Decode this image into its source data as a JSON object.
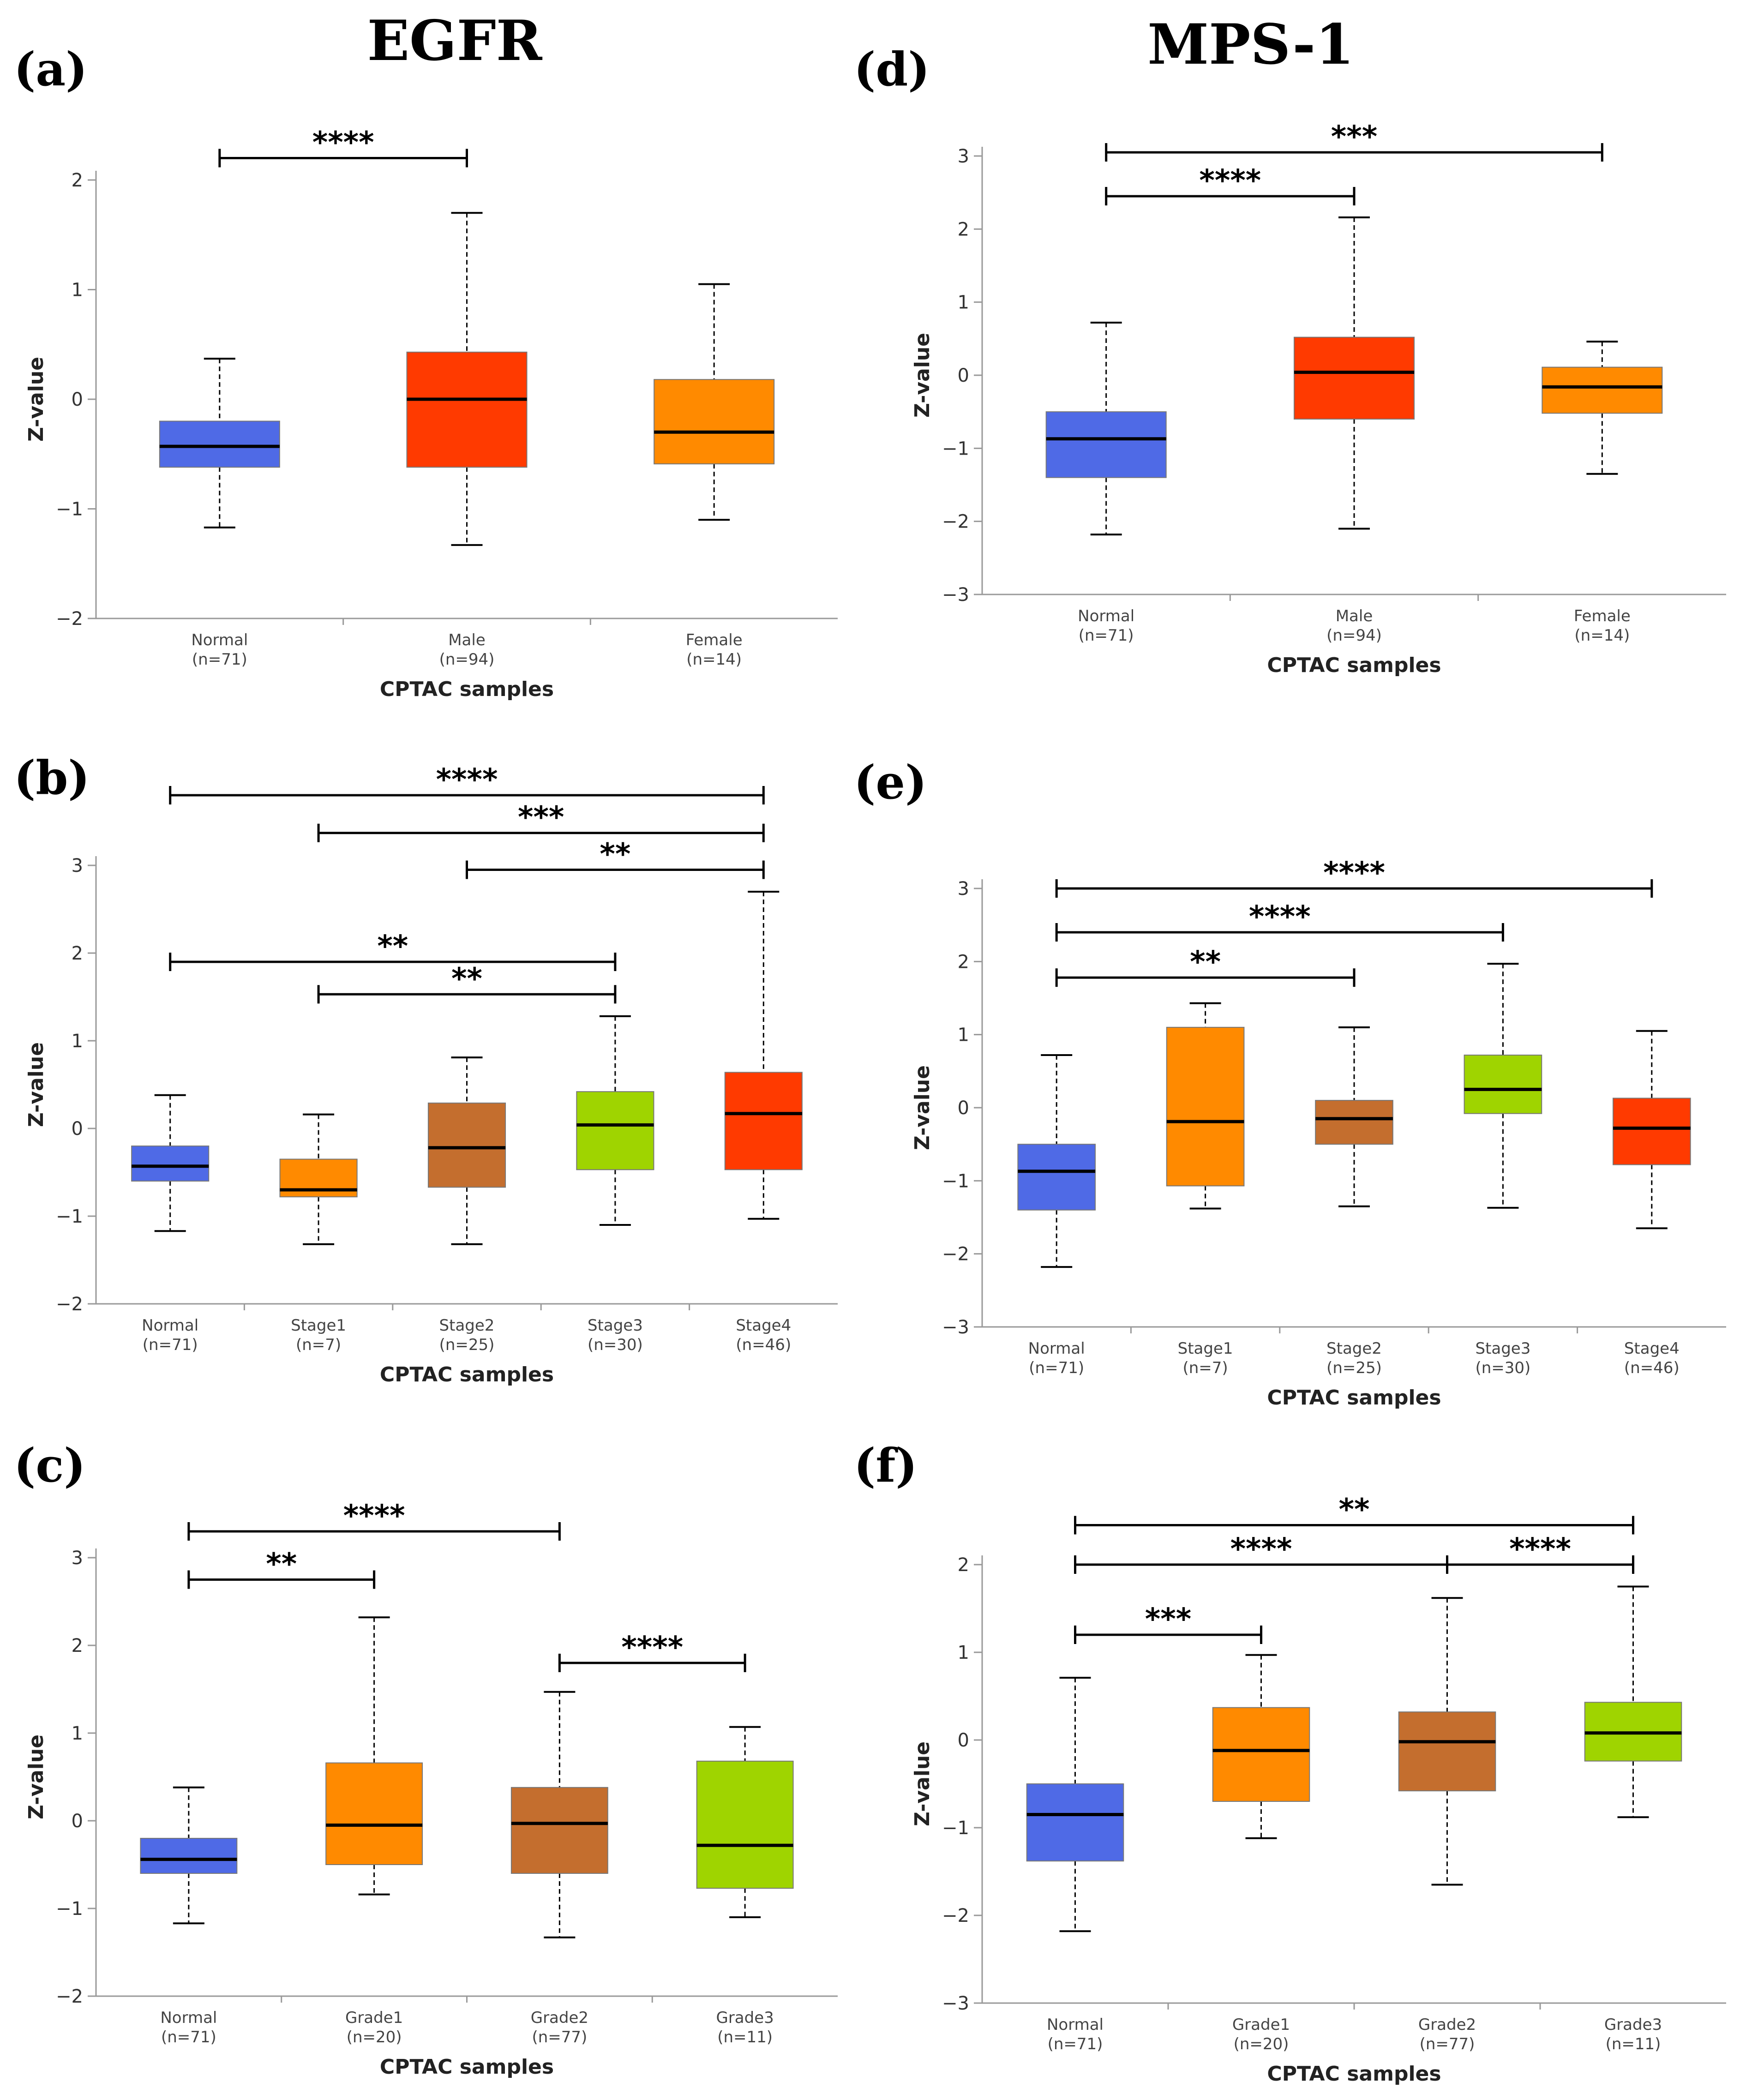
{
  "titles": {
    "left": "EGFR",
    "right": "MPS-1"
  },
  "colors": {
    "blue": "#4f6ae6",
    "red": "#ff3a00",
    "orange": "#ff8a00",
    "brown": "#c46e2e",
    "green": "#9fd400"
  },
  "chart_data": [
    {
      "id": "a",
      "letter": "(a)",
      "type": "box",
      "gene": "EGFR",
      "ylabel": "Z-value",
      "xlabel": "CPTAC samples",
      "ylim": [
        -2,
        2
      ],
      "yticks": [
        -2,
        -1,
        0,
        1,
        2
      ],
      "categories": [
        {
          "name": "Normal",
          "n": "(n=71)",
          "min": -1.17,
          "q1": -0.62,
          "median": -0.43,
          "q3": -0.2,
          "max": 0.37,
          "color": "blue"
        },
        {
          "name": "Male",
          "n": "(n=94)",
          "min": -1.33,
          "q1": -0.62,
          "median": 0.0,
          "q3": 0.43,
          "max": 1.7,
          "color": "red"
        },
        {
          "name": "Female",
          "n": "(n=14)",
          "min": -1.1,
          "q1": -0.59,
          "median": -0.3,
          "q3": 0.18,
          "max": 1.05,
          "color": "orange"
        }
      ],
      "significance": [
        {
          "from": 0,
          "to": 1,
          "y": 2.2,
          "label": "****"
        }
      ]
    },
    {
      "id": "b",
      "letter": "(b)",
      "type": "box",
      "gene": "EGFR",
      "ylabel": "Z-value",
      "xlabel": "CPTAC samples",
      "ylim": [
        -2,
        3
      ],
      "yticks": [
        -2,
        -1,
        0,
        1,
        2,
        3
      ],
      "categories": [
        {
          "name": "Normal",
          "n": "(n=71)",
          "min": -1.17,
          "q1": -0.6,
          "median": -0.43,
          "q3": -0.2,
          "max": 0.38,
          "color": "blue"
        },
        {
          "name": "Stage1",
          "n": "(n=7)",
          "min": -1.32,
          "q1": -0.78,
          "median": -0.7,
          "q3": -0.35,
          "max": 0.16,
          "color": "orange"
        },
        {
          "name": "Stage2",
          "n": "(n=25)",
          "min": -1.32,
          "q1": -0.67,
          "median": -0.22,
          "q3": 0.29,
          "max": 0.81,
          "color": "brown"
        },
        {
          "name": "Stage3",
          "n": "(n=30)",
          "min": -1.1,
          "q1": -0.47,
          "median": 0.04,
          "q3": 0.42,
          "max": 1.28,
          "color": "green"
        },
        {
          "name": "Stage4",
          "n": "(n=46)",
          "min": -1.03,
          "q1": -0.47,
          "median": 0.17,
          "q3": 0.64,
          "max": 2.7,
          "color": "red"
        }
      ],
      "significance": [
        {
          "from": 0,
          "to": 4,
          "y": 3.8,
          "label": "****"
        },
        {
          "from": 1,
          "to": 4,
          "y": 3.37,
          "label": "***"
        },
        {
          "from": 2,
          "to": 4,
          "y": 2.95,
          "label": "**"
        },
        {
          "from": 0,
          "to": 3,
          "y": 1.9,
          "label": "**"
        },
        {
          "from": 1,
          "to": 3,
          "y": 1.53,
          "label": "**"
        }
      ]
    },
    {
      "id": "c",
      "letter": "(c)",
      "type": "box",
      "gene": "EGFR",
      "ylabel": "Z-value",
      "xlabel": "CPTAC samples",
      "ylim": [
        -2,
        3
      ],
      "yticks": [
        -2,
        -1,
        0,
        1,
        2,
        3
      ],
      "categories": [
        {
          "name": "Normal",
          "n": "(n=71)",
          "min": -1.17,
          "q1": -0.6,
          "median": -0.44,
          "q3": -0.2,
          "max": 0.38,
          "color": "blue"
        },
        {
          "name": "Grade1",
          "n": "(n=20)",
          "min": -0.84,
          "q1": -0.5,
          "median": -0.05,
          "q3": 0.66,
          "max": 2.32,
          "color": "orange"
        },
        {
          "name": "Grade2",
          "n": "(n=77)",
          "min": -1.33,
          "q1": -0.6,
          "median": -0.03,
          "q3": 0.38,
          "max": 1.47,
          "color": "brown"
        },
        {
          "name": "Grade3",
          "n": "(n=11)",
          "min": -1.1,
          "q1": -0.77,
          "median": -0.28,
          "q3": 0.68,
          "max": 1.07,
          "color": "green"
        }
      ],
      "significance": [
        {
          "from": 0,
          "to": 2,
          "y": 3.3,
          "label": "****"
        },
        {
          "from": 0,
          "to": 1,
          "y": 2.75,
          "label": "**"
        },
        {
          "from": 2,
          "to": 3,
          "y": 1.8,
          "label": "****"
        }
      ]
    },
    {
      "id": "d",
      "letter": "(d)",
      "type": "box",
      "gene": "MPS-1",
      "ylabel": "Z-value",
      "xlabel": "CPTAC samples",
      "ylim": [
        -3,
        3
      ],
      "yticks": [
        -3,
        -2,
        -1,
        0,
        1,
        2,
        3
      ],
      "categories": [
        {
          "name": "Normal",
          "n": "(n=71)",
          "min": -2.18,
          "q1": -1.4,
          "median": -0.87,
          "q3": -0.5,
          "max": 0.72,
          "color": "blue"
        },
        {
          "name": "Male",
          "n": "(n=94)",
          "min": -2.1,
          "q1": -0.6,
          "median": 0.04,
          "q3": 0.52,
          "max": 2.16,
          "color": "red"
        },
        {
          "name": "Female",
          "n": "(n=14)",
          "min": -1.35,
          "q1": -0.52,
          "median": -0.16,
          "q3": 0.11,
          "max": 0.46,
          "color": "orange"
        }
      ],
      "significance": [
        {
          "from": 0,
          "to": 2,
          "y": 3.05,
          "label": "***"
        },
        {
          "from": 0,
          "to": 1,
          "y": 2.45,
          "label": "****"
        }
      ]
    },
    {
      "id": "e",
      "letter": "(e)",
      "type": "box",
      "gene": "MPS-1",
      "ylabel": "Z-value",
      "xlabel": "CPTAC samples",
      "ylim": [
        -3,
        3
      ],
      "yticks": [
        -3,
        -2,
        -1,
        0,
        1,
        2,
        3
      ],
      "categories": [
        {
          "name": "Normal",
          "n": "(n=71)",
          "min": -2.18,
          "q1": -1.4,
          "median": -0.87,
          "q3": -0.5,
          "max": 0.72,
          "color": "blue"
        },
        {
          "name": "Stage1",
          "n": "(n=7)",
          "min": -1.38,
          "q1": -1.07,
          "median": -0.19,
          "q3": 1.1,
          "max": 1.43,
          "color": "orange"
        },
        {
          "name": "Stage2",
          "n": "(n=25)",
          "min": -1.35,
          "q1": -0.5,
          "median": -0.15,
          "q3": 0.1,
          "max": 1.1,
          "color": "brown"
        },
        {
          "name": "Stage3",
          "n": "(n=30)",
          "min": -1.37,
          "q1": -0.08,
          "median": 0.25,
          "q3": 0.72,
          "max": 1.97,
          "color": "green"
        },
        {
          "name": "Stage4",
          "n": "(n=46)",
          "min": -1.65,
          "q1": -0.78,
          "median": -0.28,
          "q3": 0.13,
          "max": 1.05,
          "color": "red"
        }
      ],
      "significance": [
        {
          "from": 0,
          "to": 4,
          "y": 3.0,
          "label": "****"
        },
        {
          "from": 0,
          "to": 3,
          "y": 2.4,
          "label": "****"
        },
        {
          "from": 0,
          "to": 2,
          "y": 1.78,
          "label": "**"
        }
      ]
    },
    {
      "id": "f",
      "letter": "(f)",
      "type": "box",
      "gene": "MPS-1",
      "ylabel": "Z-value",
      "xlabel": "CPTAC samples",
      "ylim": [
        -3,
        2
      ],
      "yticks": [
        -3,
        -2,
        -1,
        0,
        1,
        2
      ],
      "categories": [
        {
          "name": "Normal",
          "n": "(n=71)",
          "min": -2.18,
          "q1": -1.38,
          "median": -0.85,
          "q3": -0.5,
          "max": 0.71,
          "color": "blue"
        },
        {
          "name": "Grade1",
          "n": "(n=20)",
          "min": -1.12,
          "q1": -0.7,
          "median": -0.12,
          "q3": 0.37,
          "max": 0.97,
          "color": "orange"
        },
        {
          "name": "Grade2",
          "n": "(n=77)",
          "min": -1.65,
          "q1": -0.58,
          "median": -0.02,
          "q3": 0.32,
          "max": 1.62,
          "color": "brown"
        },
        {
          "name": "Grade3",
          "n": "(n=11)",
          "min": -0.88,
          "q1": -0.24,
          "median": 0.08,
          "q3": 0.43,
          "max": 1.75,
          "color": "green"
        }
      ],
      "significance": [
        {
          "from": 0,
          "to": 3,
          "y": 2.45,
          "label": "**"
        },
        {
          "from": 0,
          "to": 2,
          "y": 2.0,
          "label": "****"
        },
        {
          "from": 2,
          "to": 3,
          "y": 2.0,
          "label": "****"
        },
        {
          "from": 0,
          "to": 1,
          "y": 1.2,
          "label": "***"
        }
      ]
    }
  ]
}
